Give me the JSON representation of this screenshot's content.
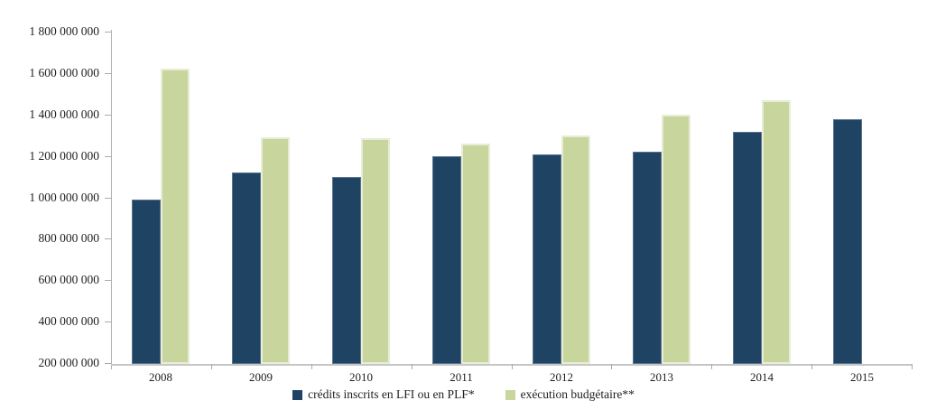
{
  "chart_data": {
    "type": "bar",
    "title": "",
    "xlabel": "",
    "ylabel": "",
    "categories": [
      "2008",
      "2009",
      "2010",
      "2011",
      "2012",
      "2013",
      "2014",
      "2015"
    ],
    "series": [
      {
        "name": "crédits inscrits en LFI ou en PLF*",
        "color": "#1f4463",
        "border_color": "#5a7390",
        "values": [
          990000000,
          1120000000,
          1100000000,
          1200000000,
          1205000000,
          1220000000,
          1315000000,
          1375000000
        ]
      },
      {
        "name": "exécution budgétaire**",
        "color": "#c8d59d",
        "border_color": "#e7edd6",
        "values": [
          1620000000,
          1290000000,
          1285000000,
          1260000000,
          1300000000,
          1400000000,
          1470000000,
          null
        ]
      }
    ],
    "ylim": [
      200000000,
      1800000000
    ],
    "ytick_step": 200000000,
    "ytick_labels": [
      "1 800 000 000",
      "1 600 000 000",
      "1 400 000 000",
      "1 200 000 000",
      "1 000 000 000",
      "800 000 000",
      "600 000 000",
      "400 000 000",
      "200 000 000"
    ],
    "grid": false,
    "legend_position": "bottom",
    "axis_color": "#b3b3b3",
    "baseline_color": "#c6c6c6",
    "text_color": "#1f1f1f"
  }
}
